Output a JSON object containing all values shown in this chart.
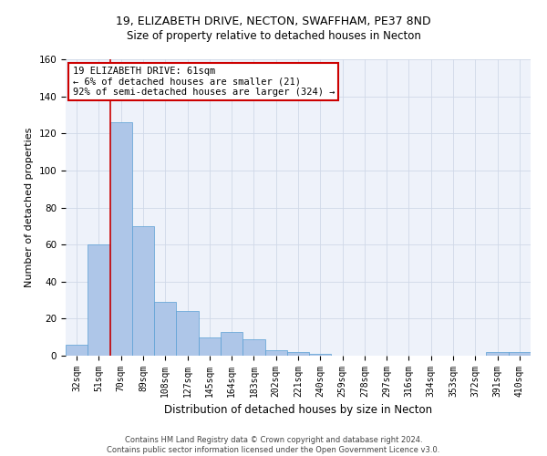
{
  "title1": "19, ELIZABETH DRIVE, NECTON, SWAFFHAM, PE37 8ND",
  "title2": "Size of property relative to detached houses in Necton",
  "xlabel": "Distribution of detached houses by size in Necton",
  "ylabel": "Number of detached properties",
  "categories": [
    "32sqm",
    "51sqm",
    "70sqm",
    "89sqm",
    "108sqm",
    "127sqm",
    "145sqm",
    "164sqm",
    "183sqm",
    "202sqm",
    "221sqm",
    "240sqm",
    "259sqm",
    "278sqm",
    "297sqm",
    "316sqm",
    "334sqm",
    "353sqm",
    "372sqm",
    "391sqm",
    "410sqm"
  ],
  "values": [
    6,
    60,
    126,
    70,
    29,
    24,
    10,
    13,
    9,
    3,
    2,
    1,
    0,
    0,
    0,
    0,
    0,
    0,
    0,
    2,
    2
  ],
  "bar_color": "#aec6e8",
  "bar_edge_color": "#5a9fd4",
  "grid_color": "#d0d8e8",
  "vline_x": 1.5,
  "vline_color": "#cc0000",
  "annotation_text": "19 ELIZABETH DRIVE: 61sqm\n← 6% of detached houses are smaller (21)\n92% of semi-detached houses are larger (324) →",
  "annotation_box_color": "#ffffff",
  "annotation_box_edge": "#cc0000",
  "ylim": [
    0,
    160
  ],
  "yticks": [
    0,
    20,
    40,
    60,
    80,
    100,
    120,
    140,
    160
  ],
  "footer1": "Contains HM Land Registry data © Crown copyright and database right 2024.",
  "footer2": "Contains public sector information licensed under the Open Government Licence v3.0.",
  "bg_color": "#eef2fa",
  "title1_fontsize": 9,
  "title2_fontsize": 8.5,
  "ylabel_fontsize": 8,
  "xlabel_fontsize": 8.5,
  "tick_fontsize": 7
}
